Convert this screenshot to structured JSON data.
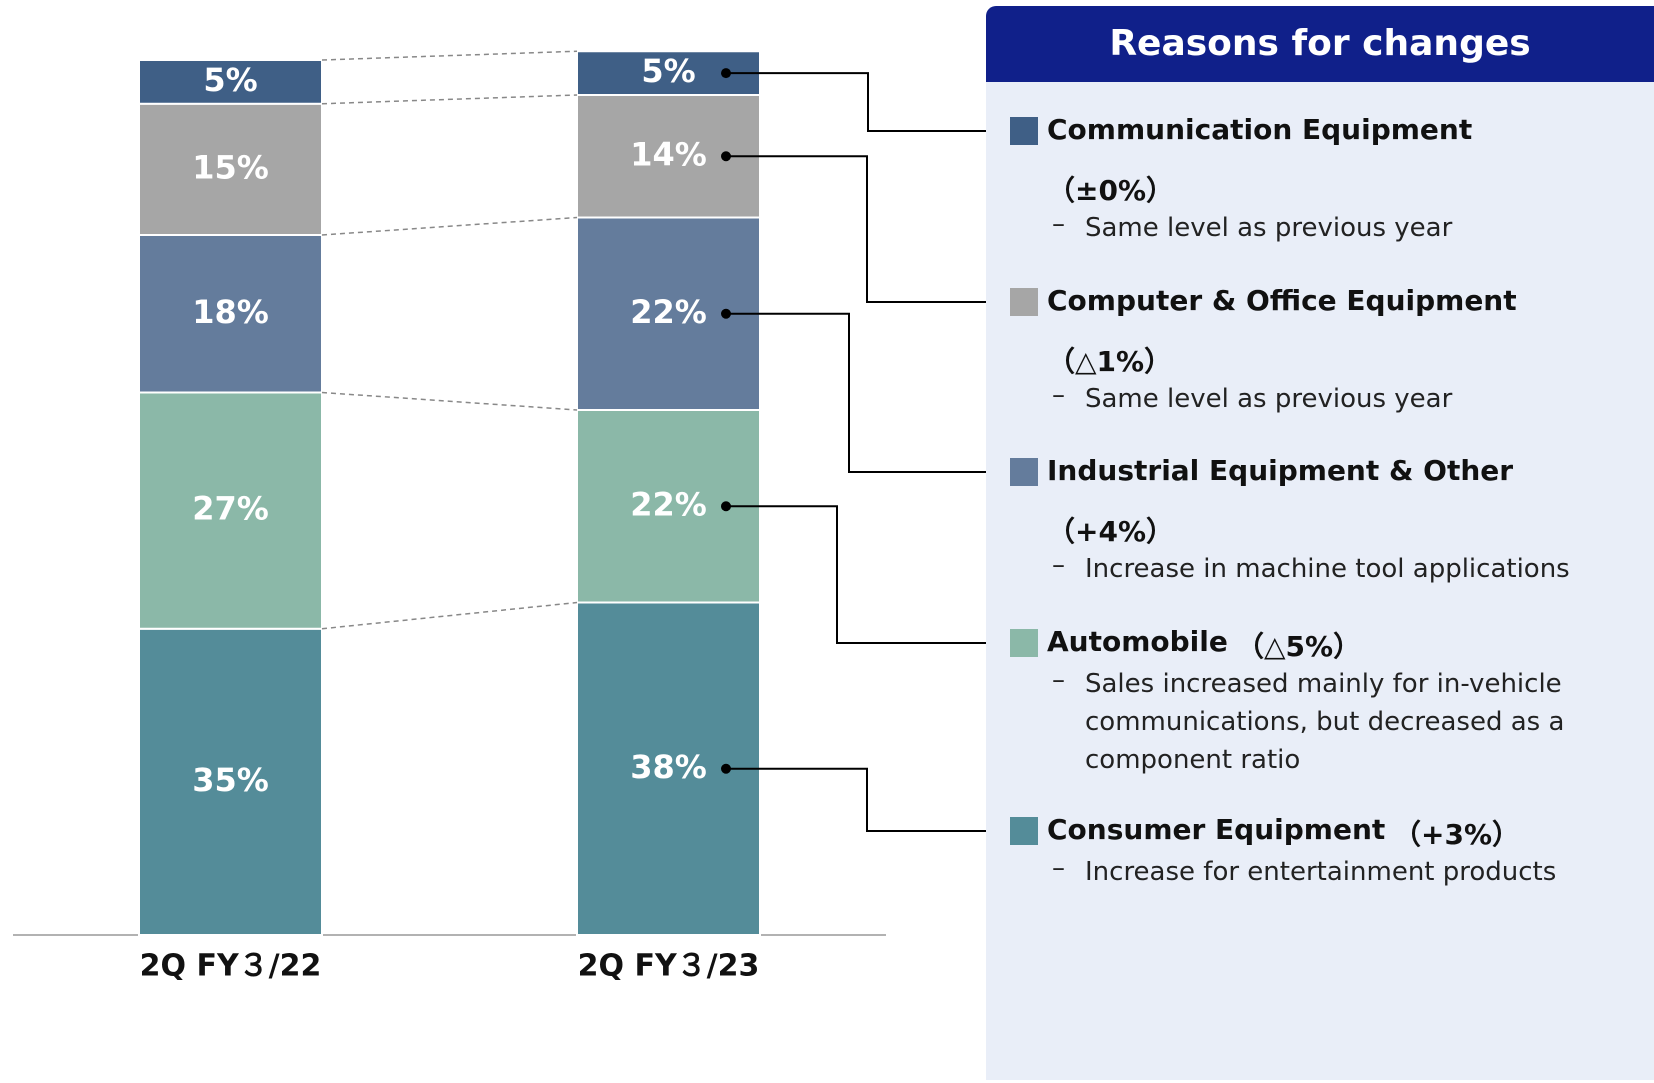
{
  "chart_data": {
    "type": "stacked_bar",
    "categories": [
      "2Q FY３/22",
      "2Q FY３/23"
    ],
    "ylim": [
      0,
      100
    ],
    "series": [
      {
        "name": "Consumer Equipment",
        "color": "#548c99",
        "values": [
          35,
          38
        ],
        "value_labels": [
          "35%",
          "38%"
        ]
      },
      {
        "name": "Automobile",
        "color": "#8bb8a8",
        "values": [
          27,
          22
        ],
        "value_labels": [
          "27%",
          "22%"
        ]
      },
      {
        "name": "Industrial Equipment & Other",
        "color": "#647c9c",
        "values": [
          18,
          22
        ],
        "value_labels": [
          "18%",
          "22%"
        ]
      },
      {
        "name": "Computer & Office Equipment",
        "color": "#a6a6a6",
        "values": [
          15,
          14
        ],
        "value_labels": [
          "15%",
          "14%"
        ]
      },
      {
        "name": "Communication Equipment",
        "color": "#3f5f86",
        "values": [
          5,
          5
        ],
        "value_labels": [
          "5%",
          "5%"
        ]
      }
    ]
  },
  "panel": {
    "title": "Reasons for changes",
    "items": [
      {
        "change": "（+3%）",
        "notes": [
          "Increase for entertainment products"
        ]
      },
      {
        "change": "（△5%）",
        "notes": [
          "Sales increased mainly for in-vehicle communications, but decreased as a component ratio"
        ]
      },
      {
        "change": "（+4%）",
        "notes": [
          "Increase in machine tool applications"
        ]
      },
      {
        "change": "（△1%）",
        "notes": [
          "Same level as previous year"
        ]
      },
      {
        "change": "（±0%）",
        "notes": [
          "Same level as previous year"
        ]
      }
    ]
  }
}
